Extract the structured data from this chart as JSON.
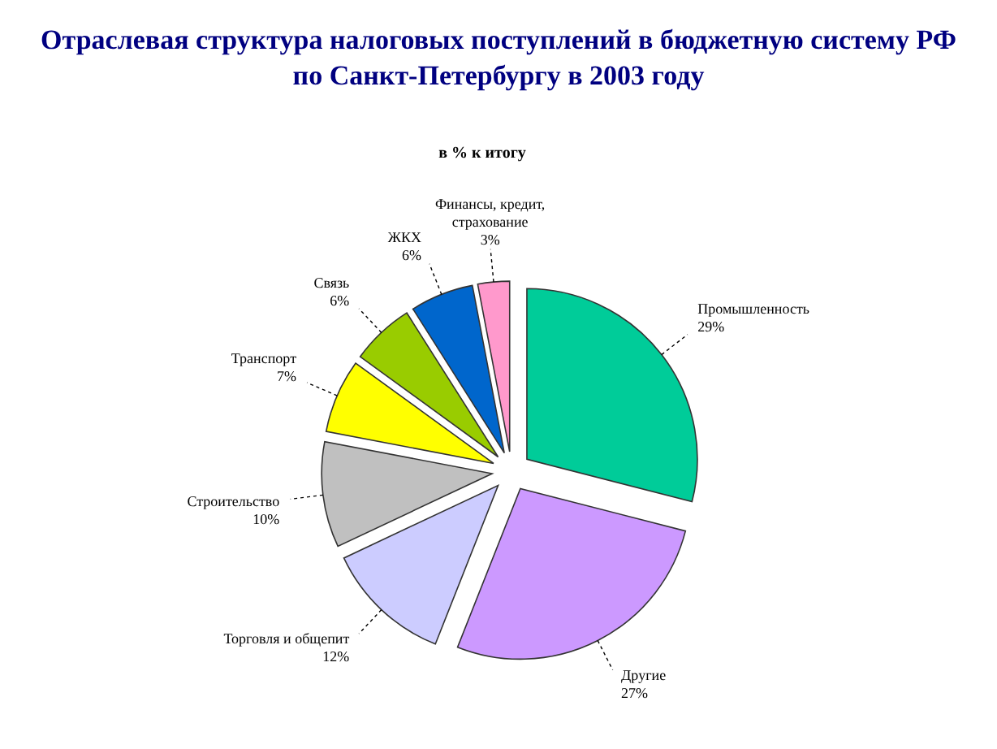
{
  "chart_data": {
    "type": "pie",
    "title": "Отраслевая структура налоговых поступлений в бюджетную систему РФ\nпо Санкт-Петербургу в 2003 году",
    "subtitle": "в % к итогу",
    "categories": [
      "Промышленность",
      "Другие",
      "Торговля и общепит",
      "Строительство",
      "Транспорт",
      "Связь",
      "ЖКХ",
      "Финансы, кредит,\nстрахование"
    ],
    "values": [
      29,
      27,
      12,
      10,
      7,
      6,
      6,
      3
    ],
    "value_labels": [
      "29%",
      "27%",
      "12%",
      "10%",
      "7%",
      "6%",
      "6%",
      "3%"
    ],
    "colors": [
      "#00cc99",
      "#cc99ff",
      "#ccccff",
      "#c0c0c0",
      "#ffff00",
      "#99cc00",
      "#0066cc",
      "#ff99cc"
    ]
  }
}
